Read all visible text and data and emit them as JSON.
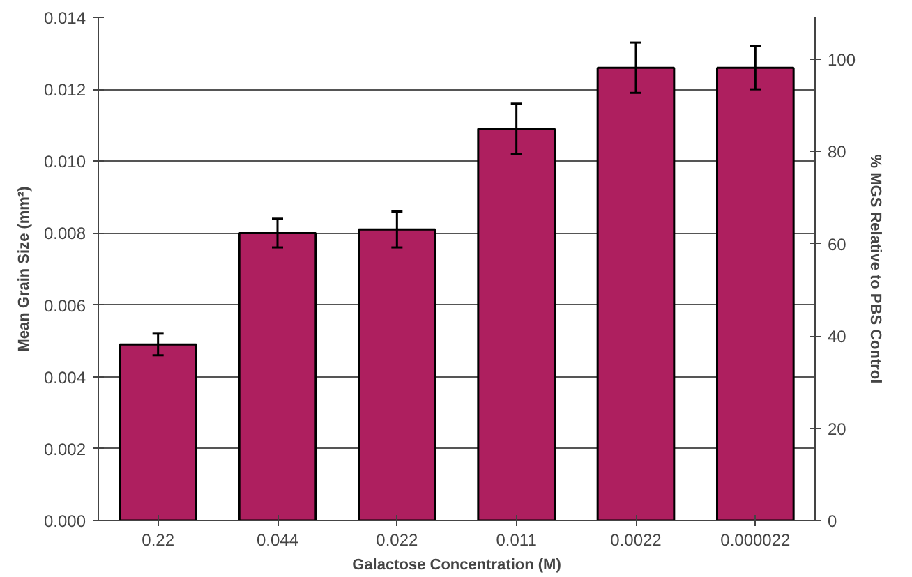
{
  "chart_data": {
    "type": "bar",
    "xlabel": "Galactose Concentration (M)",
    "ylabel": "Mean Grain Size (mm²)",
    "y2label": "% MGS Relative to PBS Control",
    "categories": [
      "0.22",
      "0.044",
      "0.022",
      "0.011",
      "0.0022",
      "0.000022"
    ],
    "series": [
      {
        "color": "#ae1f5f",
        "values": [
          0.0049,
          0.008,
          0.0081,
          0.0109,
          0.0126,
          0.0126
        ],
        "errors": [
          0.0003,
          0.0004,
          0.0005,
          0.0007,
          0.0007,
          0.0006
        ]
      }
    ],
    "ylim": [
      0,
      0.014
    ],
    "yticks": [
      {
        "value": 0,
        "label": "0.000"
      },
      {
        "value": 0.002,
        "label": "0.002"
      },
      {
        "value": 0.004,
        "label": "0.004"
      },
      {
        "value": 0.006,
        "label": "0.006"
      },
      {
        "value": 0.008,
        "label": "0.008"
      },
      {
        "value": 0.01,
        "label": "0.010"
      },
      {
        "value": 0.012,
        "label": "0.012"
      },
      {
        "value": 0.014,
        "label": "0.014"
      }
    ],
    "y2lim": [
      0,
      109
    ],
    "y2ticks": [
      0,
      20,
      40,
      60,
      80,
      100
    ],
    "grid": "y"
  }
}
